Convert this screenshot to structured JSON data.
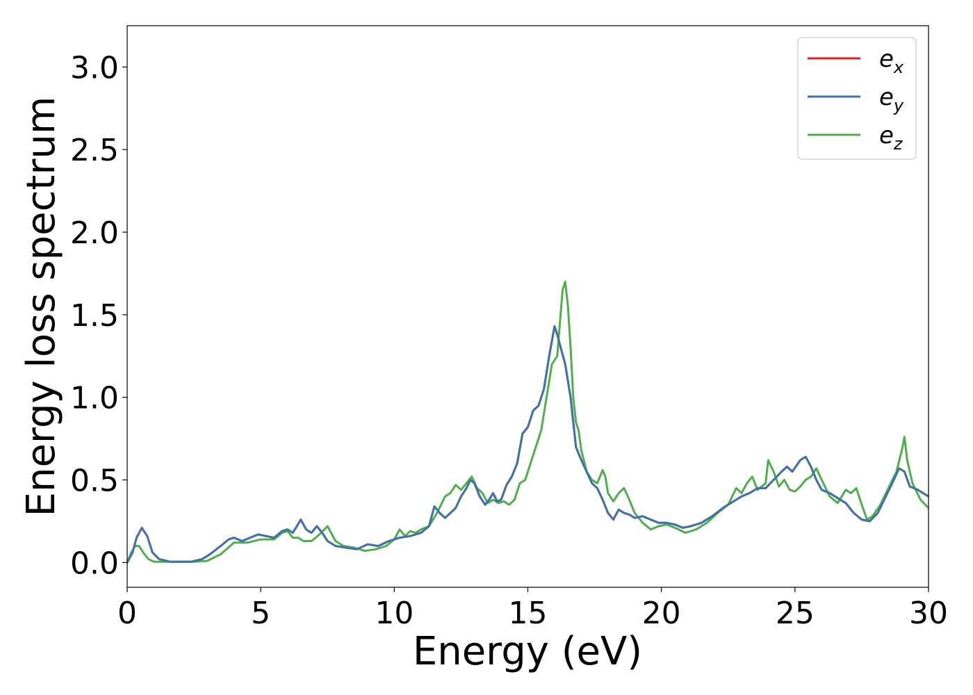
{
  "chart_data": {
    "type": "line",
    "title": "",
    "xlabel": "Energy (eV)",
    "ylabel": "Energy loss spectrum",
    "xlim": [
      0,
      30
    ],
    "ylim": [
      -0.15,
      3.25
    ],
    "xticks": [
      0,
      5,
      10,
      15,
      20,
      25,
      30
    ],
    "xtick_labels": [
      "0",
      "5",
      "10",
      "15",
      "20",
      "25",
      "30"
    ],
    "yticks": [
      0.0,
      0.5,
      1.0,
      1.5,
      2.0,
      2.5,
      3.0
    ],
    "ytick_labels": [
      "0.0",
      "0.5",
      "1.0",
      "1.5",
      "2.0",
      "2.5",
      "3.0"
    ],
    "grid": false,
    "legend_position": "top-right",
    "series": [
      {
        "name": "e",
        "subscript": "x",
        "color": "#e41a1c",
        "x": [
          0,
          0.2,
          0.35,
          0.55,
          0.75,
          0.95,
          1.2,
          1.6,
          2.0,
          2.4,
          2.8,
          3.1,
          3.5,
          3.8,
          4.0,
          4.3,
          4.6,
          4.9,
          5.2,
          5.5,
          5.8,
          6.0,
          6.2,
          6.35,
          6.5,
          6.7,
          6.9,
          7.1,
          7.3,
          7.5,
          7.8,
          8.2,
          8.6,
          9.0,
          9.4,
          9.8,
          10.2,
          10.6,
          11.0,
          11.3,
          11.5,
          11.7,
          11.9,
          12.1,
          12.3,
          12.5,
          12.7,
          12.85,
          13.0,
          13.2,
          13.4,
          13.55,
          13.7,
          13.85,
          14.0,
          14.2,
          14.4,
          14.6,
          14.8,
          15.0,
          15.2,
          15.4,
          15.6,
          15.8,
          16.0,
          16.1,
          16.2,
          16.4,
          16.6,
          16.8,
          17.0,
          17.2,
          17.4,
          17.6,
          17.8,
          18.0,
          18.2,
          18.4,
          18.6,
          18.8,
          19.0,
          19.3,
          19.6,
          19.9,
          20.2,
          20.5,
          20.8,
          21.1,
          21.5,
          21.9,
          22.3,
          22.7,
          23.0,
          23.3,
          23.6,
          23.9,
          24.2,
          24.5,
          24.7,
          24.9,
          25.2,
          25.4,
          25.6,
          25.8,
          26.0,
          26.3,
          26.6,
          26.9,
          27.2,
          27.5,
          27.8,
          28.1,
          28.4,
          28.7,
          28.9,
          29.1,
          29.3,
          29.6,
          30.0
        ],
        "y": [
          0.0,
          0.06,
          0.15,
          0.21,
          0.16,
          0.06,
          0.02,
          0.005,
          0.005,
          0.005,
          0.02,
          0.05,
          0.1,
          0.14,
          0.15,
          0.13,
          0.15,
          0.17,
          0.16,
          0.15,
          0.19,
          0.2,
          0.18,
          0.22,
          0.26,
          0.2,
          0.18,
          0.22,
          0.18,
          0.13,
          0.1,
          0.09,
          0.08,
          0.11,
          0.1,
          0.13,
          0.15,
          0.16,
          0.18,
          0.22,
          0.34,
          0.3,
          0.27,
          0.3,
          0.33,
          0.4,
          0.45,
          0.5,
          0.48,
          0.4,
          0.35,
          0.38,
          0.42,
          0.37,
          0.38,
          0.47,
          0.52,
          0.6,
          0.78,
          0.82,
          0.92,
          0.95,
          1.05,
          1.25,
          1.43,
          1.38,
          1.32,
          1.2,
          1.0,
          0.7,
          0.62,
          0.55,
          0.48,
          0.45,
          0.38,
          0.3,
          0.26,
          0.32,
          0.3,
          0.29,
          0.27,
          0.28,
          0.26,
          0.24,
          0.24,
          0.23,
          0.21,
          0.22,
          0.24,
          0.28,
          0.33,
          0.37,
          0.4,
          0.42,
          0.45,
          0.45,
          0.5,
          0.55,
          0.58,
          0.55,
          0.62,
          0.64,
          0.58,
          0.5,
          0.44,
          0.42,
          0.39,
          0.36,
          0.3,
          0.26,
          0.25,
          0.3,
          0.4,
          0.5,
          0.57,
          0.55,
          0.46,
          0.44,
          0.4
        ]
      },
      {
        "name": "e",
        "subscript": "y",
        "color": "#3b73b0",
        "x": [
          0,
          0.2,
          0.35,
          0.55,
          0.75,
          0.95,
          1.2,
          1.6,
          2.0,
          2.4,
          2.8,
          3.1,
          3.5,
          3.8,
          4.0,
          4.3,
          4.6,
          4.9,
          5.2,
          5.5,
          5.8,
          6.0,
          6.2,
          6.35,
          6.5,
          6.7,
          6.9,
          7.1,
          7.3,
          7.5,
          7.8,
          8.2,
          8.6,
          9.0,
          9.4,
          9.8,
          10.2,
          10.6,
          11.0,
          11.3,
          11.5,
          11.7,
          11.9,
          12.1,
          12.3,
          12.5,
          12.7,
          12.85,
          13.0,
          13.2,
          13.4,
          13.55,
          13.7,
          13.85,
          14.0,
          14.2,
          14.4,
          14.6,
          14.8,
          15.0,
          15.2,
          15.4,
          15.6,
          15.8,
          16.0,
          16.1,
          16.2,
          16.4,
          16.6,
          16.8,
          17.0,
          17.2,
          17.4,
          17.6,
          17.8,
          18.0,
          18.2,
          18.4,
          18.6,
          18.8,
          19.0,
          19.3,
          19.6,
          19.9,
          20.2,
          20.5,
          20.8,
          21.1,
          21.5,
          21.9,
          22.3,
          22.7,
          23.0,
          23.3,
          23.6,
          23.9,
          24.2,
          24.5,
          24.7,
          24.9,
          25.2,
          25.4,
          25.6,
          25.8,
          26.0,
          26.3,
          26.6,
          26.9,
          27.2,
          27.5,
          27.8,
          28.1,
          28.4,
          28.7,
          28.9,
          29.1,
          29.3,
          29.6,
          30.0
        ],
        "y": [
          0.0,
          0.06,
          0.15,
          0.21,
          0.16,
          0.06,
          0.02,
          0.005,
          0.005,
          0.005,
          0.02,
          0.05,
          0.1,
          0.14,
          0.15,
          0.13,
          0.15,
          0.17,
          0.16,
          0.15,
          0.19,
          0.2,
          0.18,
          0.22,
          0.26,
          0.2,
          0.18,
          0.22,
          0.18,
          0.13,
          0.1,
          0.09,
          0.08,
          0.11,
          0.1,
          0.13,
          0.15,
          0.16,
          0.18,
          0.22,
          0.34,
          0.3,
          0.27,
          0.3,
          0.33,
          0.4,
          0.45,
          0.5,
          0.48,
          0.4,
          0.35,
          0.38,
          0.42,
          0.37,
          0.38,
          0.47,
          0.52,
          0.6,
          0.78,
          0.82,
          0.92,
          0.95,
          1.05,
          1.25,
          1.43,
          1.38,
          1.32,
          1.2,
          1.0,
          0.7,
          0.62,
          0.55,
          0.48,
          0.45,
          0.38,
          0.3,
          0.26,
          0.32,
          0.3,
          0.29,
          0.27,
          0.28,
          0.26,
          0.24,
          0.24,
          0.23,
          0.21,
          0.22,
          0.24,
          0.28,
          0.33,
          0.37,
          0.4,
          0.42,
          0.45,
          0.45,
          0.5,
          0.55,
          0.58,
          0.55,
          0.62,
          0.64,
          0.58,
          0.5,
          0.44,
          0.42,
          0.39,
          0.36,
          0.3,
          0.26,
          0.25,
          0.3,
          0.4,
          0.5,
          0.57,
          0.55,
          0.46,
          0.44,
          0.4
        ]
      },
      {
        "name": "e",
        "subscript": "z",
        "color": "#4daf4a",
        "x": [
          0,
          0.15,
          0.3,
          0.45,
          0.6,
          0.8,
          1.0,
          1.4,
          2.0,
          2.5,
          3.0,
          3.5,
          4.0,
          4.5,
          5.0,
          5.5,
          5.8,
          6.0,
          6.2,
          6.4,
          6.6,
          6.9,
          7.2,
          7.5,
          7.8,
          8.1,
          8.5,
          8.9,
          9.3,
          9.7,
          10.0,
          10.2,
          10.4,
          10.6,
          10.8,
          11.0,
          11.3,
          11.6,
          11.9,
          12.1,
          12.3,
          12.5,
          12.7,
          12.9,
          13.1,
          13.3,
          13.5,
          13.7,
          13.9,
          14.1,
          14.3,
          14.5,
          14.7,
          14.9,
          15.1,
          15.3,
          15.5,
          15.7,
          15.9,
          16.1,
          16.2,
          16.3,
          16.4,
          16.5,
          16.6,
          16.7,
          16.8,
          16.9,
          17.0,
          17.2,
          17.4,
          17.6,
          17.8,
          17.9,
          18.0,
          18.2,
          18.4,
          18.6,
          18.8,
          19.0,
          19.3,
          19.6,
          19.9,
          20.2,
          20.5,
          20.9,
          21.3,
          21.7,
          22.1,
          22.5,
          22.8,
          23.0,
          23.2,
          23.4,
          23.6,
          23.9,
          24.0,
          24.2,
          24.4,
          24.6,
          24.8,
          25.0,
          25.2,
          25.4,
          25.6,
          25.8,
          26.0,
          26.3,
          26.6,
          26.9,
          27.1,
          27.3,
          27.5,
          27.7,
          27.9,
          28.2,
          28.5,
          28.8,
          29.0,
          29.1,
          29.2,
          29.4,
          29.7,
          30.0
        ],
        "y": [
          0.0,
          0.06,
          0.1,
          0.1,
          0.06,
          0.02,
          0.005,
          0.005,
          0.005,
          0.005,
          0.01,
          0.05,
          0.12,
          0.12,
          0.14,
          0.14,
          0.18,
          0.19,
          0.15,
          0.15,
          0.13,
          0.13,
          0.17,
          0.22,
          0.13,
          0.1,
          0.09,
          0.07,
          0.08,
          0.1,
          0.14,
          0.2,
          0.16,
          0.19,
          0.18,
          0.2,
          0.22,
          0.3,
          0.4,
          0.42,
          0.47,
          0.44,
          0.48,
          0.52,
          0.45,
          0.42,
          0.36,
          0.38,
          0.36,
          0.37,
          0.35,
          0.38,
          0.48,
          0.5,
          0.6,
          0.7,
          0.8,
          1.0,
          1.2,
          1.25,
          1.45,
          1.65,
          1.7,
          1.55,
          1.3,
          1.0,
          0.85,
          0.8,
          0.68,
          0.55,
          0.5,
          0.48,
          0.56,
          0.52,
          0.42,
          0.37,
          0.42,
          0.45,
          0.38,
          0.3,
          0.24,
          0.2,
          0.22,
          0.23,
          0.21,
          0.18,
          0.2,
          0.24,
          0.3,
          0.35,
          0.45,
          0.42,
          0.48,
          0.52,
          0.44,
          0.48,
          0.62,
          0.55,
          0.46,
          0.5,
          0.44,
          0.43,
          0.46,
          0.5,
          0.52,
          0.57,
          0.5,
          0.4,
          0.36,
          0.44,
          0.42,
          0.45,
          0.35,
          0.26,
          0.28,
          0.35,
          0.45,
          0.55,
          0.68,
          0.76,
          0.62,
          0.48,
          0.38,
          0.33
        ]
      }
    ]
  }
}
